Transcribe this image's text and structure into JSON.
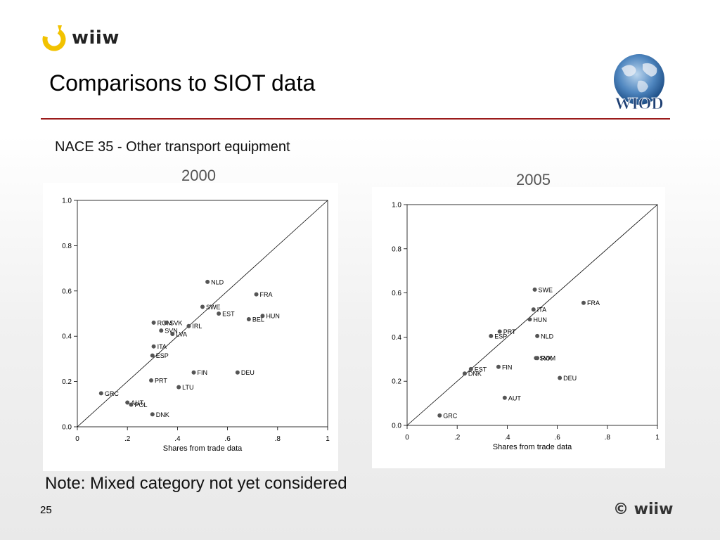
{
  "logo": {
    "text": "wiiw"
  },
  "title": "Comparisons to SIOT data",
  "subtitle": "NACE 35 - Other transport equipment",
  "note": "Note: Mixed category not yet considered",
  "page_number": "25",
  "copyright": "© wiiw",
  "wiod_logo": {
    "text": "WIOD"
  },
  "colors": {
    "rule": "#9b1b1b",
    "points": "#555555",
    "logo_ring": "#f2c200"
  },
  "chart_data": [
    {
      "type": "scatter",
      "title": "2000",
      "xlabel": "Shares from trade data",
      "ylabel": "",
      "xlim": [
        0,
        1
      ],
      "ylim": [
        0,
        1
      ],
      "xticks": [
        "0",
        ".2",
        ".4",
        ".6",
        ".8",
        "1"
      ],
      "yticks": [
        "0.0",
        "0.2",
        "0.4",
        "0.6",
        "0.8",
        "1.0"
      ],
      "reference_line": "45-degree",
      "points": [
        {
          "label": "NLD",
          "x": 0.52,
          "y": 0.64
        },
        {
          "label": "FRA",
          "x": 0.715,
          "y": 0.585
        },
        {
          "label": "SWE",
          "x": 0.5,
          "y": 0.53
        },
        {
          "label": "EST",
          "x": 0.565,
          "y": 0.5
        },
        {
          "label": "HUN",
          "x": 0.74,
          "y": 0.49
        },
        {
          "label": "BEL",
          "x": 0.685,
          "y": 0.475
        },
        {
          "label": "ROM",
          "x": 0.305,
          "y": 0.46
        },
        {
          "label": "SVK",
          "x": 0.355,
          "y": 0.46
        },
        {
          "label": "IRL",
          "x": 0.445,
          "y": 0.445
        },
        {
          "label": "SVN",
          "x": 0.335,
          "y": 0.425
        },
        {
          "label": "LVA",
          "x": 0.38,
          "y": 0.41
        },
        {
          "label": "ITA",
          "x": 0.305,
          "y": 0.355
        },
        {
          "label": "ESP",
          "x": 0.3,
          "y": 0.315
        },
        {
          "label": "FIN",
          "x": 0.465,
          "y": 0.24
        },
        {
          "label": "DEU",
          "x": 0.64,
          "y": 0.24
        },
        {
          "label": "PRT",
          "x": 0.295,
          "y": 0.205
        },
        {
          "label": "LTU",
          "x": 0.405,
          "y": 0.175
        },
        {
          "label": "GRC",
          "x": 0.095,
          "y": 0.148
        },
        {
          "label": "AUT",
          "x": 0.2,
          "y": 0.107
        },
        {
          "label": "POL",
          "x": 0.215,
          "y": 0.098
        },
        {
          "label": "DNK",
          "x": 0.3,
          "y": 0.055
        }
      ]
    },
    {
      "type": "scatter",
      "title": "2005",
      "xlabel": "Shares from trade data",
      "ylabel": "",
      "xlim": [
        0,
        1
      ],
      "ylim": [
        0,
        1
      ],
      "xticks": [
        "0",
        ".2",
        ".4",
        ".6",
        ".8",
        "1"
      ],
      "yticks": [
        "0.0",
        "0.2",
        "0.4",
        "0.6",
        "0.8",
        "1.0"
      ],
      "reference_line": "45-degree",
      "points": [
        {
          "label": "SWE",
          "x": 0.51,
          "y": 0.615
        },
        {
          "label": "FRA",
          "x": 0.705,
          "y": 0.555
        },
        {
          "label": "ITA",
          "x": 0.505,
          "y": 0.525
        },
        {
          "label": "HUN",
          "x": 0.49,
          "y": 0.48
        },
        {
          "label": "PRT",
          "x": 0.37,
          "y": 0.425
        },
        {
          "label": "ESP",
          "x": 0.335,
          "y": 0.405
        },
        {
          "label": "NLD",
          "x": 0.52,
          "y": 0.405
        },
        {
          "label": "SVK",
          "x": 0.515,
          "y": 0.305
        },
        {
          "label": "ROM",
          "x": 0.52,
          "y": 0.305
        },
        {
          "label": "FIN",
          "x": 0.365,
          "y": 0.265
        },
        {
          "label": "EST",
          "x": 0.255,
          "y": 0.255
        },
        {
          "label": "DNK",
          "x": 0.23,
          "y": 0.235
        },
        {
          "label": "DEU",
          "x": 0.61,
          "y": 0.215
        },
        {
          "label": "AUT",
          "x": 0.39,
          "y": 0.125
        },
        {
          "label": "GRC",
          "x": 0.13,
          "y": 0.045
        }
      ]
    }
  ]
}
